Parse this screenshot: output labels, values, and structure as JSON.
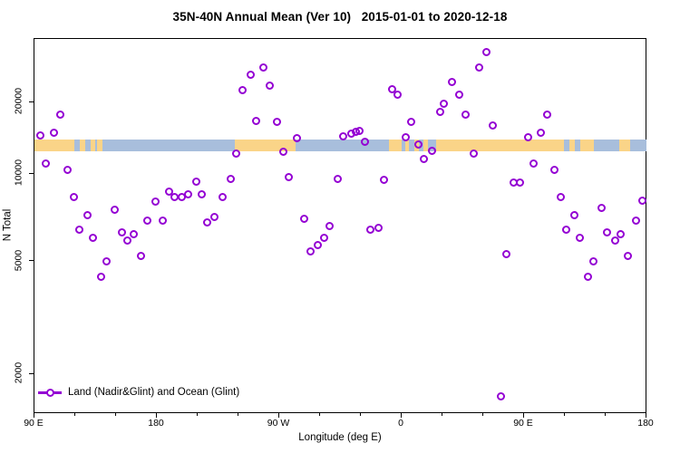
{
  "chart_data": {
    "type": "scatter",
    "title": "35N-40N Annual Mean (Ver 10)   2015-01-01 to 2020-12-18",
    "xlabel": "Longitude (deg E)",
    "ylabel": "N Total",
    "marker": "open-circle",
    "marker_color": "#9400D3",
    "grid": false,
    "x_axis": {
      "note": "longitude axis wraps eastward: 90E -> 180 -> 90W -> 0 -> 90E -> 180 (450 deg total)",
      "range_deg": [
        90,
        540
      ],
      "major_ticks": [
        {
          "lon": 90,
          "label": "90 E"
        },
        {
          "lon": 180,
          "label": "180"
        },
        {
          "lon": 270,
          "label": "90 W"
        },
        {
          "lon": 360,
          "label": "0"
        },
        {
          "lon": 450,
          "label": "90 E"
        },
        {
          "lon": 540,
          "label": "180"
        }
      ],
      "minor_tick_step_deg": 30
    },
    "y_axis": {
      "ticks": [
        2000,
        5000,
        10000,
        20000
      ],
      "scale": "nonlinear log-like",
      "range_approx": [
        1500,
        33000
      ]
    },
    "legend": [
      {
        "label": "Land (Nadir&Glint) and Ocean (Glint)",
        "marker": "open-circle",
        "color": "#9400D3"
      }
    ],
    "land_ocean_band": {
      "n_top": 13900,
      "n_bottom": 12400,
      "ocean_color": "#A8BEDC",
      "land_color": "#FAD488",
      "ocean_extent": [
        90,
        540
      ],
      "land_segments": [
        [
          90,
          119
        ],
        [
          123,
          127
        ],
        [
          131,
          134.5
        ],
        [
          136,
          140
        ],
        [
          237,
          282
        ],
        [
          350.5,
          360
        ],
        [
          362.5,
          365.5
        ],
        [
          369.5,
          372.5
        ],
        [
          376,
          379
        ],
        [
          385,
          479
        ],
        [
          483,
          487
        ],
        [
          491,
          501
        ],
        [
          520,
          528
        ]
      ]
    },
    "series": [
      {
        "name": "Land (Nadir&Glint) and Ocean (Glint)",
        "points_lon_n": [
          [
            109,
            17700
          ],
          [
            94,
            14500
          ],
          [
            104,
            14900
          ],
          [
            238,
            12200
          ],
          [
            249,
            26200
          ],
          [
            258,
            28100
          ],
          [
            243,
            22600
          ],
          [
            263,
            23600
          ],
          [
            253,
            16700
          ],
          [
            268,
            16500
          ],
          [
            283,
            14100
          ],
          [
            273,
            12400
          ],
          [
            317,
            14400
          ],
          [
            323,
            14700
          ],
          [
            326,
            15000
          ],
          [
            329,
            15100
          ],
          [
            333,
            13600
          ],
          [
            353,
            22800
          ],
          [
            357,
            21600
          ],
          [
            363,
            14200
          ],
          [
            367,
            16500
          ],
          [
            372,
            13300
          ],
          [
            382,
            12500
          ],
          [
            388,
            18300
          ],
          [
            391,
            19700
          ],
          [
            422,
            32600
          ],
          [
            417,
            28100
          ],
          [
            397,
            24400
          ],
          [
            402,
            21600
          ],
          [
            407,
            17700
          ],
          [
            427,
            16000
          ],
          [
            467,
            17700
          ],
          [
            462,
            14900
          ],
          [
            453,
            14200
          ],
          [
            413,
            12200
          ],
          [
            98,
            11000
          ],
          [
            114,
            10400
          ],
          [
            119,
            8300
          ],
          [
            129,
            7200
          ],
          [
            123,
            6400
          ],
          [
            133,
            6000
          ],
          [
            149,
            7500
          ],
          [
            154,
            6300
          ],
          [
            158,
            5900
          ],
          [
            163,
            6200
          ],
          [
            143,
            5000
          ],
          [
            139,
            4400
          ],
          [
            168,
            5200
          ],
          [
            173,
            6900
          ],
          [
            179,
            8000
          ],
          [
            184,
            6900
          ],
          [
            189,
            8700
          ],
          [
            193,
            8300
          ],
          [
            198,
            8300
          ],
          [
            203,
            8500
          ],
          [
            209,
            9400
          ],
          [
            213,
            8500
          ],
          [
            217,
            6800
          ],
          [
            222,
            7100
          ],
          [
            234,
            9600
          ],
          [
            228,
            8300
          ],
          [
            277,
            9700
          ],
          [
            313,
            9600
          ],
          [
            347,
            9500
          ],
          [
            288,
            7000
          ],
          [
            307,
            6600
          ],
          [
            303,
            6000
          ],
          [
            298,
            5700
          ],
          [
            293,
            5400
          ],
          [
            337,
            6400
          ],
          [
            343,
            6500
          ],
          [
            376,
            11500
          ],
          [
            457,
            11000
          ],
          [
            472,
            10400
          ],
          [
            442,
            9300
          ],
          [
            447,
            9300
          ],
          [
            477,
            8300
          ],
          [
            507,
            7600
          ],
          [
            487,
            7200
          ],
          [
            481,
            6400
          ],
          [
            491,
            6000
          ],
          [
            511,
            6300
          ],
          [
            517,
            5900
          ],
          [
            521,
            6200
          ],
          [
            537,
            8100
          ],
          [
            532,
            6900
          ],
          [
            526,
            5200
          ],
          [
            437,
            5300
          ],
          [
            501,
            5000
          ],
          [
            497,
            4400
          ],
          [
            433,
            1670
          ]
        ]
      }
    ]
  },
  "colors": {
    "purple": "#9400D3",
    "ocean": "#A8BEDC",
    "land": "#FAD488",
    "axis": "#000000"
  }
}
